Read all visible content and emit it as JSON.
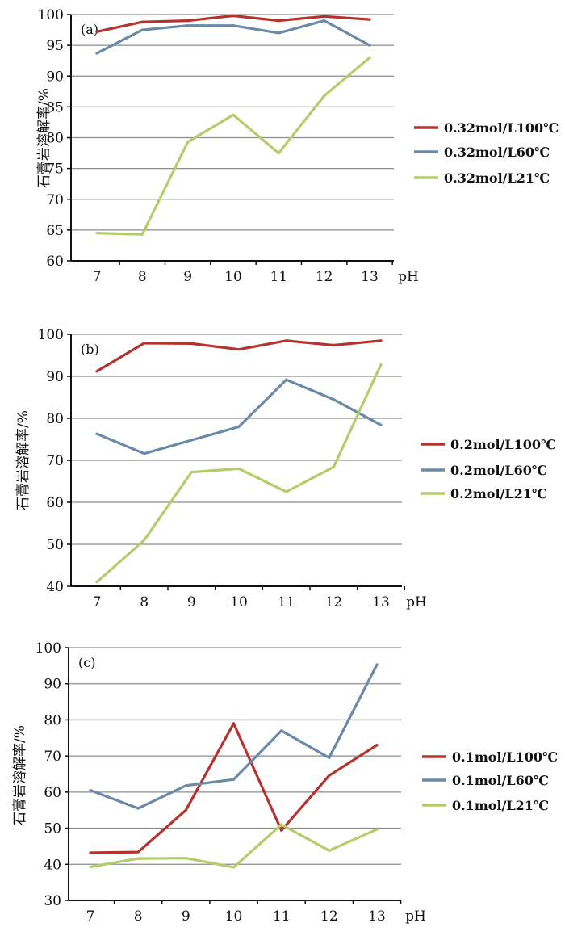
{
  "chart_data": [
    {
      "type": "line",
      "panel_label": "(a)",
      "ylabel": "石膏岩溶解率/%",
      "xlabel": "pH",
      "categories": [
        "7",
        "8",
        "9",
        "10",
        "11",
        "12",
        "13"
      ],
      "ylim": [
        60,
        100
      ],
      "yticks": [
        60,
        65,
        70,
        75,
        80,
        85,
        90,
        95,
        100
      ],
      "grid": true,
      "legend_position": "right",
      "series": [
        {
          "name": "0.32mol/L100℃",
          "color": "#b5332e",
          "values": [
            97.2,
            98.8,
            99.0,
            99.8,
            99.0,
            99.7,
            99.2
          ]
        },
        {
          "name": "0.32mol/L60℃",
          "color": "#6b89a8",
          "values": [
            93.7,
            97.5,
            98.2,
            98.2,
            97.0,
            99.0,
            95.0
          ]
        },
        {
          "name": "0.32mol/L21℃",
          "color": "#b3cc6c",
          "values": [
            64.5,
            64.3,
            79.3,
            83.7,
            77.5,
            86.8,
            93.0
          ]
        }
      ]
    },
    {
      "type": "line",
      "panel_label": "(b)",
      "ylabel": "石膏岩溶解率/%",
      "xlabel": "pH",
      "categories": [
        "7",
        "8",
        "9",
        "10",
        "11",
        "12",
        "13"
      ],
      "ylim": [
        40,
        100
      ],
      "yticks": [
        40,
        50,
        60,
        70,
        80,
        90,
        100
      ],
      "grid": true,
      "legend_position": "right",
      "series": [
        {
          "name": "0.2mol/L100℃",
          "color": "#b5332e",
          "values": [
            91.2,
            97.9,
            97.8,
            96.4,
            98.5,
            97.4,
            98.5
          ]
        },
        {
          "name": "0.2mol/L60℃",
          "color": "#6b89a8",
          "values": [
            76.3,
            71.6,
            74.8,
            78.0,
            89.2,
            84.5,
            78.4
          ]
        },
        {
          "name": "0.2mol/L21℃",
          "color": "#b3cc6c",
          "values": [
            41.0,
            51.0,
            67.2,
            68.0,
            62.5,
            68.4,
            92.8
          ]
        }
      ]
    },
    {
      "type": "line",
      "panel_label": "(c)",
      "ylabel": "石膏岩溶解率/%",
      "xlabel": "pH",
      "categories": [
        "7",
        "8",
        "9",
        "10",
        "11",
        "12",
        "13"
      ],
      "ylim": [
        30,
        100
      ],
      "yticks": [
        30,
        40,
        50,
        60,
        70,
        80,
        90,
        100
      ],
      "grid": true,
      "legend_position": "right",
      "series": [
        {
          "name": "0.1mol/L100℃",
          "color": "#b5332e",
          "values": [
            43.2,
            43.4,
            55.0,
            79.0,
            49.4,
            64.6,
            73.0
          ]
        },
        {
          "name": "0.1mol/L60℃",
          "color": "#6b89a8",
          "values": [
            60.5,
            55.5,
            61.8,
            63.5,
            77.0,
            69.5,
            95.3
          ]
        },
        {
          "name": "0.1mol/L21℃",
          "color": "#b3cc6c",
          "values": [
            39.3,
            41.6,
            41.7,
            39.2,
            51.0,
            43.8,
            49.7
          ]
        }
      ]
    }
  ]
}
